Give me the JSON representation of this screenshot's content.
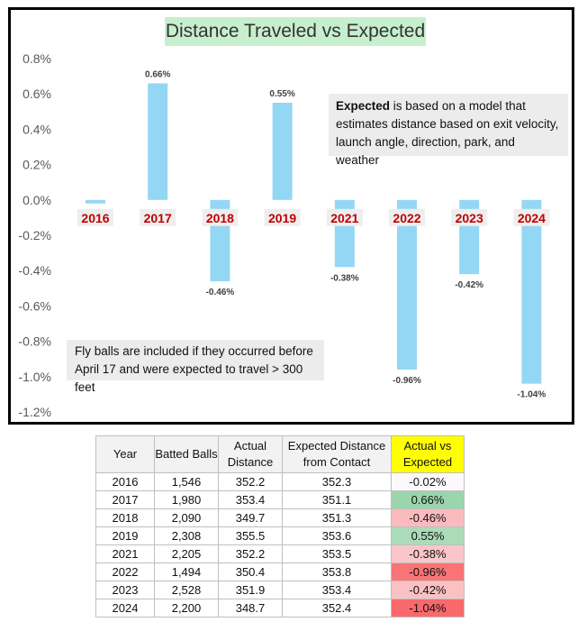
{
  "chart_data": {
    "type": "bar",
    "title": "Distance Traveled vs Expected",
    "categories": [
      "2016",
      "2017",
      "2018",
      "2019",
      "2021",
      "2022",
      "2023",
      "2024"
    ],
    "values": [
      -0.02,
      0.66,
      -0.46,
      0.55,
      -0.38,
      -0.96,
      -0.42,
      -1.04
    ],
    "data_labels": [
      "",
      "0.66%",
      "-0.46%",
      "0.55%",
      "-0.38%",
      "-0.96%",
      "-0.42%",
      "-1.04%"
    ],
    "ylim": [
      -1.2,
      0.8
    ],
    "yticks": [
      "0.8%",
      "0.6%",
      "0.4%",
      "0.2%",
      "0.0%",
      "-0.2%",
      "-0.4%",
      "-0.6%",
      "-0.8%",
      "-1.0%",
      "-1.2%"
    ],
    "ytick_values": [
      0.8,
      0.6,
      0.4,
      0.2,
      0.0,
      -0.2,
      -0.4,
      -0.6,
      -0.8,
      -1.0,
      -1.2
    ],
    "grid": false,
    "legend": "none",
    "xlabel": "",
    "ylabel": "",
    "colors": {
      "bar": "#94d7f4",
      "category_label": "#c00000",
      "title_background": "#c6efce"
    }
  },
  "annotations": {
    "expected_bold": "Expected",
    "expected_rest": " is based on a model that estimates distance based on exit velocity, launch angle, direction, park, and weather",
    "fly_balls": "Fly balls are included if they occurred before April 17 and were expected to travel > 300 feet"
  },
  "table": {
    "headers": [
      "Year",
      "Batted Balls",
      "Actual Distance",
      "Expected Distance from Contact",
      "Actual vs Expected"
    ],
    "rows": [
      [
        "2016",
        "1,546",
        "352.2",
        "352.3",
        "-0.02%"
      ],
      [
        "2017",
        "1,980",
        "353.4",
        "351.1",
        "0.66%"
      ],
      [
        "2018",
        "2,090",
        "349.7",
        "351.3",
        "-0.46%"
      ],
      [
        "2019",
        "2,308",
        "355.5",
        "353.6",
        "0.55%"
      ],
      [
        "2021",
        "2,205",
        "352.2",
        "353.5",
        "-0.38%"
      ],
      [
        "2022",
        "1,494",
        "350.4",
        "353.8",
        "-0.96%"
      ],
      [
        "2023",
        "2,528",
        "351.9",
        "353.4",
        "-0.42%"
      ],
      [
        "2024",
        "2,200",
        "348.7",
        "352.4",
        "-1.04%"
      ]
    ],
    "colors": {
      "positive": "#63be7b",
      "negative": "#f8696b",
      "neutral": "#fcfcff",
      "header_highlight": "#ffff00"
    }
  }
}
